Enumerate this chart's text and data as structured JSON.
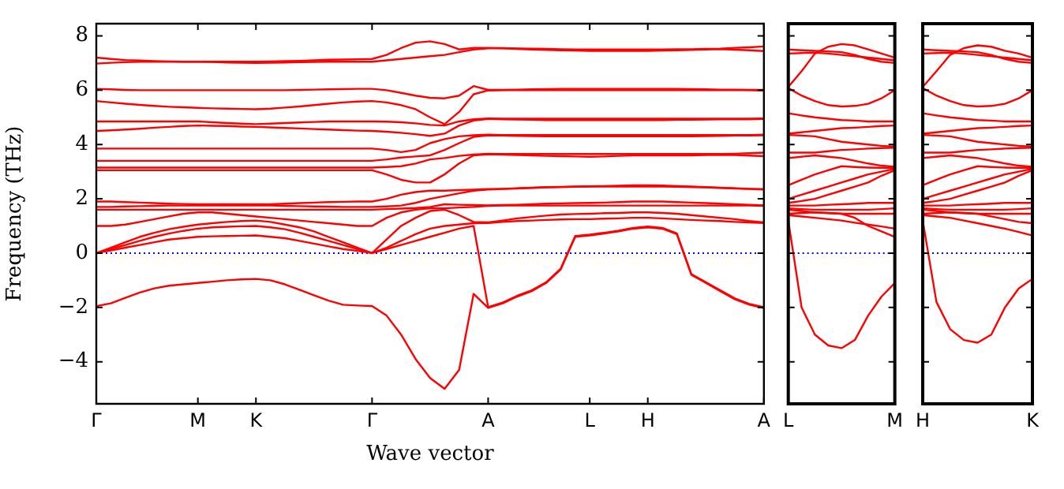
{
  "chart_data": [
    {
      "type": "line",
      "ylabel": "Frequency (THz)",
      "xlabel": "Wave vector",
      "categories": [
        "Γ",
        null,
        null,
        null,
        null,
        null,
        null,
        "M",
        null,
        null,
        null,
        "K",
        null,
        null,
        null,
        null,
        null,
        null,
        null,
        "Γ",
        null,
        null,
        null,
        null,
        null,
        null,
        null,
        "A",
        null,
        null,
        null,
        null,
        null,
        null,
        "L",
        null,
        null,
        null,
        "H",
        null,
        null,
        null,
        null,
        null,
        null,
        null,
        "A"
      ],
      "ylim": [
        -5.55,
        8.45
      ],
      "yticks": [
        {
          "value": -4,
          "label": "−4"
        },
        {
          "value": -2,
          "label": "−2"
        },
        0,
        2,
        4,
        6,
        8
      ],
      "grid": false,
      "legend": false,
      "marker": "none",
      "line_style": "solid",
      "ref_lines": [
        {
          "axis": "y",
          "value": 0,
          "color": "#0000ff",
          "line_style": "dotted"
        }
      ],
      "series": [
        {
          "color": "#ff0000",
          "values": [
            -1.95,
            -1.85,
            -1.65,
            -1.45,
            -1.3,
            -1.2,
            -1.15,
            -1.1,
            -1.05,
            -1.0,
            -0.97,
            -0.95,
            -1.0,
            -1.15,
            -1.35,
            -1.55,
            -1.75,
            -1.9,
            -1.93,
            -1.95,
            -2.3,
            -3.0,
            -3.9,
            -4.6,
            -5.0,
            -4.3,
            -1.5,
            -2.02,
            -1.85,
            -1.6,
            -1.4,
            -1.1,
            -0.6,
            0.6,
            0.65,
            0.72,
            0.8,
            0.9,
            0.95,
            0.9,
            0.7,
            -0.8,
            -1.1,
            -1.4,
            -1.7,
            -1.9,
            -2.02
          ]
        },
        {
          "color": "#ff0000",
          "values": [
            0,
            0.1,
            0.2,
            0.3,
            0.4,
            0.5,
            0.55,
            0.6,
            0.62,
            0.63,
            0.64,
            0.65,
            0.6,
            0.55,
            0.45,
            0.35,
            0.25,
            0.15,
            0.08,
            0,
            0.15,
            0.3,
            0.45,
            0.6,
            0.75,
            0.9,
            1.0,
            -1.99,
            -1.82,
            -1.57,
            -1.37,
            -1.07,
            -0.57,
            0.63,
            0.68,
            0.75,
            0.83,
            0.93,
            0.98,
            0.93,
            0.73,
            -0.77,
            -1.07,
            -1.37,
            -1.67,
            -1.87,
            -1.99
          ]
        },
        {
          "color": "#ff0000",
          "values": [
            0,
            0.15,
            0.3,
            0.45,
            0.6,
            0.72,
            0.82,
            0.9,
            0.95,
            0.97,
            0.99,
            1.0,
            0.95,
            0.88,
            0.75,
            0.6,
            0.45,
            0.3,
            0.15,
            0,
            0.2,
            0.45,
            0.7,
            0.9,
            1.0,
            1.05,
            1.1,
            1.11,
            1.15,
            1.18,
            1.2,
            1.22,
            1.24,
            1.25,
            1.25,
            1.27,
            1.28,
            1.3,
            1.3,
            1.28,
            1.25,
            1.22,
            1.2,
            1.18,
            1.15,
            1.13,
            1.11
          ]
        },
        {
          "color": "#ff0000",
          "values": [
            0,
            0.2,
            0.4,
            0.6,
            0.75,
            0.88,
            0.97,
            1.05,
            1.1,
            1.15,
            1.18,
            1.2,
            1.15,
            1.05,
            0.95,
            0.8,
            0.6,
            0.4,
            0.2,
            0,
            0.5,
            1.0,
            1.3,
            1.55,
            1.6,
            1.4,
            1.15,
            1.13,
            1.2,
            1.28,
            1.33,
            1.38,
            1.42,
            1.44,
            1.45,
            1.47,
            1.48,
            1.5,
            1.5,
            1.48,
            1.45,
            1.4,
            1.35,
            1.3,
            1.25,
            1.18,
            1.13
          ]
        },
        {
          "color": "#ff0000",
          "values": [
            1.0,
            1.0,
            1.05,
            1.15,
            1.25,
            1.35,
            1.45,
            1.5,
            1.5,
            1.45,
            1.4,
            1.35,
            1.3,
            1.25,
            1.2,
            1.15,
            1.1,
            1.05,
            1.0,
            1.0,
            1.3,
            1.5,
            1.6,
            1.65,
            1.65,
            1.68,
            1.7,
            1.74,
            1.75,
            1.75,
            1.75,
            1.75,
            1.75,
            1.75,
            1.75,
            1.75,
            1.75,
            1.75,
            1.75,
            1.75,
            1.75,
            1.75,
            1.75,
            1.75,
            1.75,
            1.75,
            1.74
          ]
        },
        {
          "color": "#ff0000",
          "values": [
            1.6,
            1.6,
            1.6,
            1.6,
            1.6,
            1.6,
            1.6,
            1.6,
            1.6,
            1.6,
            1.6,
            1.6,
            1.6,
            1.6,
            1.6,
            1.6,
            1.6,
            1.6,
            1.6,
            1.6,
            1.62,
            1.64,
            1.66,
            1.7,
            1.8,
            1.78,
            1.77,
            1.76,
            1.77,
            1.78,
            1.8,
            1.82,
            1.83,
            1.84,
            1.85,
            1.86,
            1.88,
            1.9,
            1.9,
            1.9,
            1.88,
            1.86,
            1.84,
            1.82,
            1.8,
            1.78,
            1.76
          ]
        },
        {
          "color": "#ff0000",
          "values": [
            1.7,
            1.7,
            1.72,
            1.73,
            1.74,
            1.75,
            1.75,
            1.75,
            1.75,
            1.75,
            1.75,
            1.75,
            1.75,
            1.74,
            1.73,
            1.72,
            1.71,
            1.7,
            1.7,
            1.7,
            1.72,
            1.75,
            1.85,
            2.0,
            2.1,
            2.2,
            2.3,
            2.34,
            2.36,
            2.38,
            2.4,
            2.42,
            2.43,
            2.44,
            2.45,
            2.45,
            2.45,
            2.45,
            2.45,
            2.45,
            2.44,
            2.43,
            2.42,
            2.4,
            2.38,
            2.36,
            2.34
          ]
        },
        {
          "color": "#ff0000",
          "values": [
            1.9,
            1.9,
            1.88,
            1.86,
            1.84,
            1.82,
            1.81,
            1.8,
            1.8,
            1.8,
            1.8,
            1.8,
            1.8,
            1.82,
            1.84,
            1.86,
            1.88,
            1.89,
            1.9,
            1.9,
            2.0,
            2.15,
            2.25,
            2.3,
            2.3,
            2.32,
            2.34,
            2.36,
            2.37,
            2.39,
            2.41,
            2.43,
            2.44,
            2.45,
            2.46,
            2.47,
            2.48,
            2.5,
            2.5,
            2.49,
            2.47,
            2.45,
            2.43,
            2.41,
            2.39,
            2.37,
            2.36
          ]
        },
        {
          "color": "#ff0000",
          "values": [
            3.05,
            3.05,
            3.05,
            3.05,
            3.05,
            3.05,
            3.05,
            3.05,
            3.05,
            3.05,
            3.05,
            3.05,
            3.05,
            3.05,
            3.05,
            3.05,
            3.05,
            3.05,
            3.05,
            3.05,
            2.9,
            2.7,
            2.6,
            2.6,
            2.9,
            3.3,
            3.6,
            3.64,
            3.63,
            3.61,
            3.6,
            3.58,
            3.57,
            3.56,
            3.55,
            3.56,
            3.58,
            3.6,
            3.6,
            3.6,
            3.6,
            3.6,
            3.61,
            3.62,
            3.61,
            3.59,
            3.57
          ]
        },
        {
          "color": "#ff0000",
          "values": [
            3.15,
            3.15,
            3.15,
            3.15,
            3.15,
            3.15,
            3.15,
            3.15,
            3.15,
            3.15,
            3.15,
            3.15,
            3.15,
            3.15,
            3.15,
            3.15,
            3.15,
            3.15,
            3.15,
            3.15,
            3.17,
            3.2,
            3.3,
            3.45,
            3.5,
            3.58,
            3.63,
            3.66,
            3.65,
            3.65,
            3.65,
            3.65,
            3.65,
            3.65,
            3.65,
            3.65,
            3.65,
            3.65,
            3.65,
            3.65,
            3.65,
            3.65,
            3.65,
            3.65,
            3.66,
            3.68,
            3.7
          ]
        },
        {
          "color": "#ff0000",
          "values": [
            3.4,
            3.4,
            3.4,
            3.4,
            3.4,
            3.4,
            3.4,
            3.4,
            3.4,
            3.4,
            3.4,
            3.4,
            3.4,
            3.4,
            3.4,
            3.4,
            3.4,
            3.4,
            3.4,
            3.4,
            3.45,
            3.52,
            3.56,
            3.6,
            3.8,
            4.05,
            4.28,
            4.34,
            4.33,
            4.32,
            4.31,
            4.3,
            4.3,
            4.3,
            4.3,
            4.3,
            4.3,
            4.3,
            4.3,
            4.3,
            4.3,
            4.3,
            4.31,
            4.32,
            4.33,
            4.33,
            4.34
          ]
        },
        {
          "color": "#ff0000",
          "values": [
            3.85,
            3.85,
            3.85,
            3.85,
            3.85,
            3.85,
            3.85,
            3.85,
            3.85,
            3.85,
            3.85,
            3.85,
            3.85,
            3.85,
            3.85,
            3.85,
            3.85,
            3.85,
            3.85,
            3.85,
            3.8,
            3.72,
            3.8,
            4.05,
            4.2,
            4.3,
            4.34,
            4.36,
            4.35,
            4.35,
            4.35,
            4.35,
            4.35,
            4.35,
            4.35,
            4.35,
            4.35,
            4.35,
            4.35,
            4.35,
            4.35,
            4.35,
            4.35,
            4.35,
            4.35,
            4.35,
            4.36
          ]
        },
        {
          "color": "#ff0000",
          "values": [
            4.5,
            4.52,
            4.55,
            4.58,
            4.62,
            4.65,
            4.68,
            4.7,
            4.69,
            4.68,
            4.66,
            4.65,
            4.63,
            4.61,
            4.59,
            4.57,
            4.55,
            4.53,
            4.51,
            4.5,
            4.47,
            4.43,
            4.38,
            4.32,
            4.4,
            4.7,
            4.88,
            4.94,
            4.93,
            4.92,
            4.91,
            4.9,
            4.9,
            4.9,
            4.9,
            4.9,
            4.9,
            4.9,
            4.9,
            4.9,
            4.91,
            4.91,
            4.92,
            4.93,
            4.93,
            4.93,
            4.94
          ]
        },
        {
          "color": "#ff0000",
          "values": [
            4.85,
            4.85,
            4.85,
            4.85,
            4.85,
            4.85,
            4.85,
            4.85,
            4.82,
            4.79,
            4.77,
            4.75,
            4.77,
            4.79,
            4.81,
            4.83,
            4.85,
            4.85,
            4.85,
            4.85,
            4.84,
            4.82,
            4.78,
            4.72,
            4.7,
            4.85,
            4.93,
            4.96,
            4.95,
            4.95,
            4.95,
            4.95,
            4.95,
            4.95,
            4.95,
            4.95,
            4.95,
            4.95,
            4.95,
            4.95,
            4.95,
            4.95,
            4.95,
            4.95,
            4.95,
            4.95,
            4.96
          ]
        },
        {
          "color": "#ff0000",
          "values": [
            5.6,
            5.55,
            5.5,
            5.46,
            5.42,
            5.39,
            5.37,
            5.35,
            5.33,
            5.32,
            5.31,
            5.3,
            5.32,
            5.36,
            5.4,
            5.45,
            5.5,
            5.55,
            5.58,
            5.6,
            5.55,
            5.45,
            5.3,
            5.0,
            4.75,
            5.2,
            5.85,
            5.99,
            6.0,
            6.0,
            6.0,
            6.0,
            6.0,
            6.0,
            6.0,
            6.0,
            6.0,
            6.0,
            6.0,
            6.0,
            6.0,
            6.0,
            6.0,
            6.0,
            6.0,
            6.0,
            5.99
          ]
        },
        {
          "color": "#ff0000",
          "values": [
            6.05,
            6.03,
            6.01,
            6.0,
            6.0,
            6.0,
            6.0,
            6.0,
            6.0,
            6.0,
            6.0,
            6.0,
            6.0,
            6.0,
            6.01,
            6.02,
            6.03,
            6.04,
            6.05,
            6.05,
            6.0,
            5.9,
            5.8,
            5.72,
            5.7,
            5.8,
            6.15,
            6.01,
            6.01,
            6.02,
            6.03,
            6.04,
            6.05,
            6.05,
            6.05,
            6.05,
            6.05,
            6.05,
            6.05,
            6.05,
            6.05,
            6.04,
            6.03,
            6.02,
            6.02,
            6.01,
            6.01
          ]
        },
        {
          "color": "#ff0000",
          "values": [
            6.98,
            7.01,
            7.03,
            7.05,
            7.05,
            7.05,
            7.05,
            7.05,
            7.04,
            7.02,
            7.01,
            7.0,
            7.01,
            7.02,
            7.03,
            7.04,
            7.05,
            7.05,
            7.05,
            7.05,
            7.1,
            7.15,
            7.2,
            7.25,
            7.3,
            7.4,
            7.5,
            7.54,
            7.54,
            7.52,
            7.5,
            7.48,
            7.47,
            7.46,
            7.45,
            7.45,
            7.45,
            7.45,
            7.45,
            7.46,
            7.47,
            7.48,
            7.5,
            7.51,
            7.49,
            7.47,
            7.44
          ]
        },
        {
          "color": "#ff0000",
          "values": [
            7.2,
            7.15,
            7.11,
            7.09,
            7.07,
            7.06,
            7.05,
            7.05,
            7.05,
            7.05,
            7.05,
            7.05,
            7.06,
            7.07,
            7.08,
            7.1,
            7.12,
            7.13,
            7.14,
            7.15,
            7.3,
            7.55,
            7.75,
            7.8,
            7.7,
            7.5,
            7.56,
            7.56,
            7.55,
            7.54,
            7.53,
            7.52,
            7.51,
            7.5,
            7.5,
            7.5,
            7.5,
            7.5,
            7.5,
            7.5,
            7.51,
            7.51,
            7.52,
            7.53,
            7.56,
            7.58,
            7.61
          ]
        }
      ]
    },
    {
      "type": "line",
      "categories": [
        "L",
        null,
        null,
        null,
        null,
        null,
        null,
        null,
        "M"
      ],
      "ylim": [
        -5.55,
        8.45
      ],
      "yticks": [
        -4,
        -2,
        0,
        2,
        4,
        6,
        8
      ],
      "tick_labels": "x",
      "grid": false,
      "legend": false,
      "marker": "none",
      "line_style": "solid",
      "ref_lines": [
        {
          "axis": "y",
          "value": 0,
          "color": "#0000ff",
          "line_style": "dotted"
        }
      ],
      "series": [
        {
          "color": "#ff0000",
          "values": [
            1.2,
            -2.0,
            -3.0,
            -3.4,
            -3.5,
            -3.2,
            -2.3,
            -1.6,
            -1.1
          ]
        },
        {
          "color": "#ff0000",
          "values": [
            1.4,
            1.35,
            1.3,
            1.25,
            1.2,
            1.12,
            1.05,
            0.98,
            0.9
          ]
        },
        {
          "color": "#ff0000",
          "values": [
            1.45,
            1.48,
            1.5,
            1.48,
            1.45,
            1.3,
            1.0,
            0.8,
            0.6
          ]
        },
        {
          "color": "#ff0000",
          "values": [
            1.6,
            1.55,
            1.5,
            1.47,
            1.45,
            1.45,
            1.45,
            1.45,
            1.45
          ]
        },
        {
          "color": "#ff0000",
          "values": [
            1.65,
            1.62,
            1.6,
            1.6,
            1.6,
            1.6,
            1.6,
            1.62,
            1.65
          ]
        },
        {
          "color": "#ff0000",
          "values": [
            1.75,
            1.75,
            1.75,
            1.78,
            1.8,
            1.82,
            1.85,
            1.85,
            1.85
          ]
        },
        {
          "color": "#ff0000",
          "values": [
            1.85,
            1.92,
            2.0,
            2.15,
            2.3,
            2.45,
            2.6,
            2.85,
            3.05
          ]
        },
        {
          "color": "#ff0000",
          "values": [
            2.0,
            2.15,
            2.3,
            2.45,
            2.6,
            2.75,
            2.9,
            3.0,
            3.1
          ]
        },
        {
          "color": "#ff0000",
          "values": [
            2.5,
            2.7,
            2.9,
            3.05,
            3.2,
            3.17,
            3.15,
            3.14,
            3.14
          ]
        },
        {
          "color": "#ff0000",
          "values": [
            3.5,
            3.55,
            3.6,
            3.55,
            3.5,
            3.4,
            3.3,
            3.22,
            3.18
          ]
        },
        {
          "color": "#ff0000",
          "values": [
            3.7,
            3.7,
            3.7,
            3.75,
            3.8,
            3.82,
            3.85,
            3.87,
            3.88
          ]
        },
        {
          "color": "#ff0000",
          "values": [
            4.35,
            4.33,
            4.3,
            4.2,
            4.1,
            4.05,
            4.0,
            3.95,
            3.92
          ]
        },
        {
          "color": "#ff0000",
          "values": [
            4.4,
            4.45,
            4.5,
            4.55,
            4.6,
            4.62,
            4.65,
            4.68,
            4.7
          ]
        },
        {
          "color": "#ff0000",
          "values": [
            5.15,
            5.07,
            5.0,
            4.95,
            4.9,
            4.88,
            4.85,
            4.85,
            4.85
          ]
        },
        {
          "color": "#ff0000",
          "values": [
            6.08,
            5.8,
            5.6,
            5.45,
            5.4,
            5.42,
            5.5,
            5.7,
            6.0
          ]
        },
        {
          "color": "#ff0000",
          "values": [
            6.12,
            6.7,
            7.35,
            7.6,
            7.7,
            7.65,
            7.5,
            7.35,
            7.2
          ]
        },
        {
          "color": "#ff0000",
          "values": [
            7.35,
            7.37,
            7.38,
            7.35,
            7.3,
            7.25,
            7.2,
            7.15,
            7.1
          ]
        },
        {
          "color": "#ff0000",
          "values": [
            7.5,
            7.47,
            7.45,
            7.43,
            7.4,
            7.3,
            7.15,
            7.05,
            7.0
          ]
        }
      ]
    },
    {
      "type": "line",
      "categories": [
        "H",
        null,
        null,
        null,
        null,
        null,
        null,
        null,
        "K"
      ],
      "ylim": [
        -5.55,
        8.45
      ],
      "yticks": [
        -4,
        -2,
        0,
        2,
        4,
        6,
        8
      ],
      "tick_labels": "x",
      "grid": false,
      "legend": false,
      "marker": "none",
      "line_style": "solid",
      "ref_lines": [
        {
          "axis": "y",
          "value": 0,
          "color": "#0000ff",
          "line_style": "dotted"
        }
      ],
      "series": [
        {
          "color": "#ff0000",
          "values": [
            1.2,
            -1.8,
            -2.8,
            -3.2,
            -3.3,
            -3.0,
            -2.0,
            -1.3,
            -0.95
          ]
        },
        {
          "color": "#ff0000",
          "values": [
            1.4,
            1.35,
            1.3,
            1.2,
            1.1,
            1.0,
            0.9,
            0.78,
            0.65
          ]
        },
        {
          "color": "#ff0000",
          "values": [
            1.45,
            1.48,
            1.5,
            1.48,
            1.45,
            1.35,
            1.25,
            1.15,
            1.1
          ]
        },
        {
          "color": "#ff0000",
          "values": [
            1.6,
            1.55,
            1.5,
            1.47,
            1.45,
            1.45,
            1.45,
            1.45,
            1.45
          ]
        },
        {
          "color": "#ff0000",
          "values": [
            1.65,
            1.62,
            1.6,
            1.6,
            1.6,
            1.6,
            1.6,
            1.62,
            1.65
          ]
        },
        {
          "color": "#ff0000",
          "values": [
            1.75,
            1.75,
            1.75,
            1.78,
            1.8,
            1.82,
            1.85,
            1.85,
            1.85
          ]
        },
        {
          "color": "#ff0000",
          "values": [
            1.85,
            1.92,
            2.0,
            2.15,
            2.3,
            2.45,
            2.6,
            2.85,
            3.05
          ]
        },
        {
          "color": "#ff0000",
          "values": [
            2.0,
            2.15,
            2.3,
            2.45,
            2.6,
            2.75,
            2.9,
            3.0,
            3.1
          ]
        },
        {
          "color": "#ff0000",
          "values": [
            2.5,
            2.7,
            2.9,
            3.05,
            3.2,
            3.17,
            3.15,
            3.14,
            3.14
          ]
        },
        {
          "color": "#ff0000",
          "values": [
            3.5,
            3.55,
            3.6,
            3.55,
            3.5,
            3.4,
            3.3,
            3.22,
            3.18
          ]
        },
        {
          "color": "#ff0000",
          "values": [
            3.7,
            3.7,
            3.7,
            3.75,
            3.8,
            3.82,
            3.85,
            3.87,
            3.88
          ]
        },
        {
          "color": "#ff0000",
          "values": [
            4.35,
            4.33,
            4.3,
            4.2,
            4.1,
            4.05,
            4.0,
            3.95,
            3.92
          ]
        },
        {
          "color": "#ff0000",
          "values": [
            4.4,
            4.45,
            4.5,
            4.55,
            4.6,
            4.62,
            4.65,
            4.68,
            4.7
          ]
        },
        {
          "color": "#ff0000",
          "values": [
            5.15,
            5.07,
            5.0,
            4.95,
            4.9,
            4.88,
            4.85,
            4.85,
            4.85
          ]
        },
        {
          "color": "#ff0000",
          "values": [
            6.08,
            5.8,
            5.6,
            5.45,
            5.4,
            5.42,
            5.5,
            5.7,
            6.0
          ]
        },
        {
          "color": "#ff0000",
          "values": [
            6.12,
            6.7,
            7.3,
            7.55,
            7.65,
            7.6,
            7.45,
            7.35,
            7.2
          ]
        },
        {
          "color": "#ff0000",
          "values": [
            7.35,
            7.37,
            7.38,
            7.35,
            7.3,
            7.25,
            7.2,
            7.15,
            7.1
          ]
        },
        {
          "color": "#ff0000",
          "values": [
            7.5,
            7.47,
            7.45,
            7.43,
            7.4,
            7.3,
            7.15,
            7.05,
            7.0
          ]
        }
      ]
    }
  ]
}
